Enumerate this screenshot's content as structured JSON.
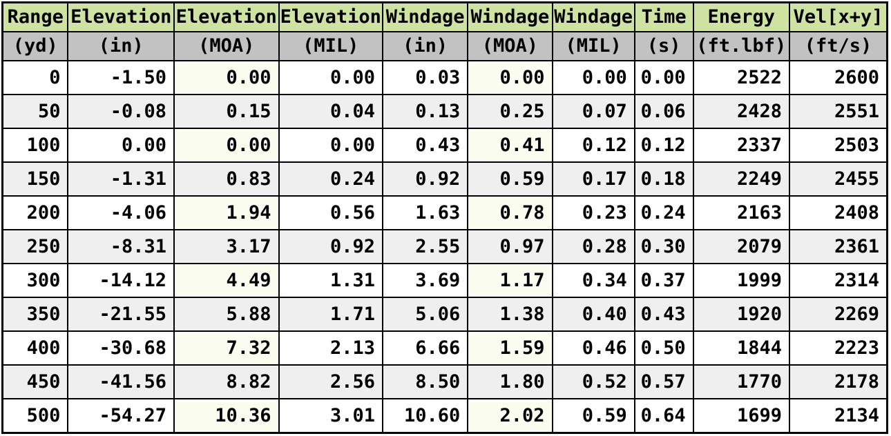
{
  "colors": {
    "header_green": "#cee2a2",
    "units_gray": "#c2c2c2",
    "stripe_gray": "#efefef",
    "moa_tint": "#fbfdf1",
    "row_white": "#ffffff",
    "border": "#000000",
    "text": "#000000"
  },
  "table": {
    "columns": [
      {
        "label": "Range",
        "unit": "(yd)"
      },
      {
        "label": "Elevation",
        "unit": "(in)"
      },
      {
        "label": "Elevation",
        "unit": "(MOA)"
      },
      {
        "label": "Elevation",
        "unit": "(MIL)"
      },
      {
        "label": "Windage",
        "unit": "(in)"
      },
      {
        "label": "Windage",
        "unit": "(MOA)"
      },
      {
        "label": "Windage",
        "unit": "(MIL)"
      },
      {
        "label": "Time",
        "unit": "(s)"
      },
      {
        "label": "Energy",
        "unit": "(ft.lbf)"
      },
      {
        "label": "Vel[x+y]",
        "unit": "(ft/s)"
      }
    ],
    "highlighted_column_indices": [
      2,
      5
    ],
    "rows": [
      [
        "0",
        "-1.50",
        "0.00",
        "0.00",
        "0.03",
        "0.00",
        "0.00",
        "0.00",
        "2522",
        "2600"
      ],
      [
        "50",
        "-0.08",
        "0.15",
        "0.04",
        "0.13",
        "0.25",
        "0.07",
        "0.06",
        "2428",
        "2551"
      ],
      [
        "100",
        "0.00",
        "0.00",
        "0.00",
        "0.43",
        "0.41",
        "0.12",
        "0.12",
        "2337",
        "2503"
      ],
      [
        "150",
        "-1.31",
        "0.83",
        "0.24",
        "0.92",
        "0.59",
        "0.17",
        "0.18",
        "2249",
        "2455"
      ],
      [
        "200",
        "-4.06",
        "1.94",
        "0.56",
        "1.63",
        "0.78",
        "0.23",
        "0.24",
        "2163",
        "2408"
      ],
      [
        "250",
        "-8.31",
        "3.17",
        "0.92",
        "2.55",
        "0.97",
        "0.28",
        "0.30",
        "2079",
        "2361"
      ],
      [
        "300",
        "-14.12",
        "4.49",
        "1.31",
        "3.69",
        "1.17",
        "0.34",
        "0.37",
        "1999",
        "2314"
      ],
      [
        "350",
        "-21.55",
        "5.88",
        "1.71",
        "5.06",
        "1.38",
        "0.40",
        "0.43",
        "1920",
        "2269"
      ],
      [
        "400",
        "-30.68",
        "7.32",
        "2.13",
        "6.66",
        "1.59",
        "0.46",
        "0.50",
        "1844",
        "2223"
      ],
      [
        "450",
        "-41.56",
        "8.82",
        "2.56",
        "8.50",
        "1.80",
        "0.52",
        "0.57",
        "1770",
        "2178"
      ],
      [
        "500",
        "-54.27",
        "10.36",
        "3.01",
        "10.60",
        "2.02",
        "0.59",
        "0.64",
        "1699",
        "2134"
      ]
    ]
  }
}
